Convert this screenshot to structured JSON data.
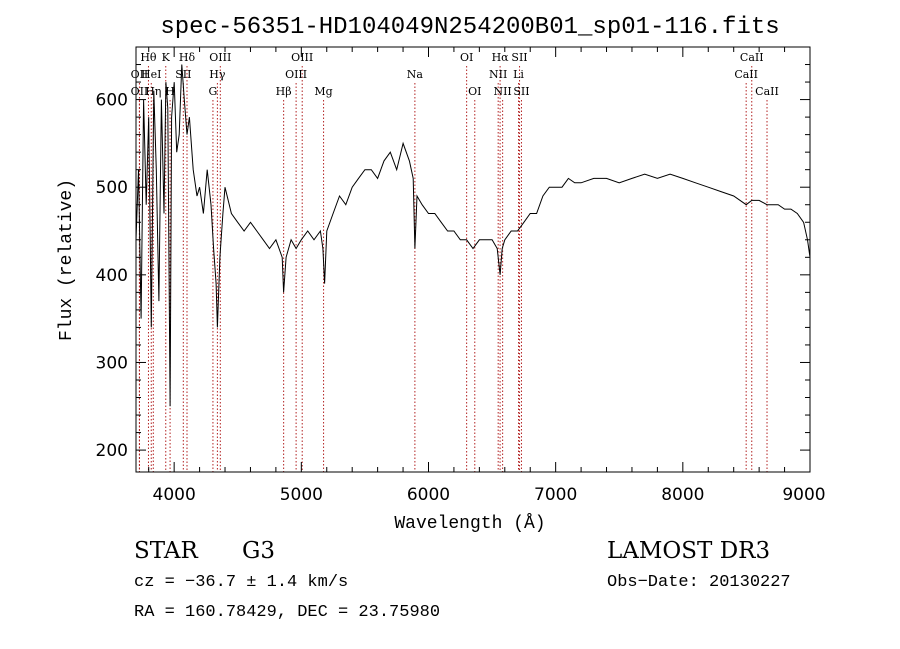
{
  "chart_data": {
    "type": "line",
    "title": "spec-56351-HD104049N254200B01_sp01-116.fits",
    "xlabel": "Wavelength (Å)",
    "ylabel": "Flux (relative)",
    "xlim": [
      3700,
      9000
    ],
    "ylim": [
      175,
      660
    ],
    "x_ticks": [
      4000,
      5000,
      6000,
      7000,
      8000,
      9000
    ],
    "y_ticks": [
      200,
      300,
      400,
      500,
      600
    ],
    "grid": false,
    "series": [
      {
        "name": "spectrum",
        "x": [
          3700,
          3720,
          3740,
          3760,
          3780,
          3800,
          3820,
          3840,
          3860,
          3880,
          3900,
          3920,
          3935,
          3950,
          3968,
          3980,
          4000,
          4020,
          4040,
          4060,
          4080,
          4101,
          4120,
          4150,
          4180,
          4200,
          4230,
          4260,
          4290,
          4310,
          4330,
          4340,
          4360,
          4383,
          4400,
          4450,
          4500,
          4550,
          4600,
          4650,
          4700,
          4750,
          4800,
          4850,
          4861,
          4880,
          4920,
          4959,
          5000,
          5050,
          5100,
          5150,
          5170,
          5183,
          5200,
          5250,
          5300,
          5350,
          5400,
          5450,
          5500,
          5550,
          5600,
          5650,
          5700,
          5750,
          5800,
          5850,
          5880,
          5893,
          5910,
          5950,
          6000,
          6050,
          6100,
          6150,
          6200,
          6250,
          6300,
          6350,
          6400,
          6450,
          6500,
          6540,
          6563,
          6580,
          6600,
          6650,
          6700,
          6750,
          6800,
          6850,
          6900,
          6950,
          7000,
          7050,
          7100,
          7150,
          7200,
          7300,
          7400,
          7500,
          7600,
          7700,
          7800,
          7900,
          8000,
          8100,
          8200,
          8300,
          8400,
          8498,
          8542,
          8600,
          8662,
          8700,
          8750,
          8800,
          8850,
          8900,
          8950,
          8980,
          9000
        ],
        "y": [
          440,
          520,
          350,
          600,
          480,
          580,
          340,
          610,
          520,
          370,
          600,
          470,
          620,
          590,
          250,
          580,
          620,
          540,
          560,
          640,
          600,
          560,
          580,
          520,
          490,
          500,
          470,
          520,
          480,
          430,
          390,
          340,
          420,
          470,
          500,
          470,
          460,
          450,
          460,
          450,
          440,
          430,
          440,
          420,
          380,
          420,
          440,
          430,
          440,
          450,
          440,
          450,
          430,
          390,
          450,
          470,
          490,
          480,
          500,
          510,
          520,
          520,
          510,
          530,
          540,
          520,
          550,
          530,
          510,
          430,
          490,
          480,
          470,
          470,
          460,
          450,
          450,
          440,
          440,
          430,
          440,
          440,
          440,
          430,
          400,
          430,
          440,
          450,
          450,
          460,
          470,
          470,
          490,
          500,
          500,
          500,
          510,
          505,
          505,
          510,
          510,
          505,
          510,
          515,
          510,
          515,
          510,
          505,
          500,
          495,
          490,
          480,
          485,
          485,
          480,
          480,
          480,
          475,
          475,
          470,
          460,
          440,
          420
        ]
      }
    ],
    "line_markers": [
      {
        "label": "Hθ",
        "x": 3798,
        "row": 1
      },
      {
        "label": "OII",
        "x": 3727,
        "row": 2
      },
      {
        "label": "HeI",
        "x": 3820,
        "row": 2
      },
      {
        "label": "OII",
        "x": 3727,
        "row": 3
      },
      {
        "label": "Hη",
        "x": 3836,
        "row": 3
      },
      {
        "label": "K",
        "x": 3934,
        "row": 1
      },
      {
        "label": "SII",
        "x": 4072,
        "row": 2
      },
      {
        "label": "H",
        "x": 3968,
        "row": 3
      },
      {
        "label": "Hδ",
        "x": 4101,
        "row": 1
      },
      {
        "label": "OIII",
        "x": 4363,
        "row": 1
      },
      {
        "label": "Hγ",
        "x": 4340,
        "row": 2
      },
      {
        "label": "G",
        "x": 4305,
        "row": 3
      },
      {
        "label": "OIII",
        "x": 5007,
        "row": 1
      },
      {
        "label": "OIII",
        "x": 4959,
        "row": 2
      },
      {
        "label": "Hβ",
        "x": 4861,
        "row": 3
      },
      {
        "label": "Mg",
        "x": 5175,
        "row": 3
      },
      {
        "label": "Na",
        "x": 5893,
        "row": 2
      },
      {
        "label": "OI",
        "x": 6300,
        "row": 1
      },
      {
        "label": "OI",
        "x": 6364,
        "row": 3
      },
      {
        "label": "Hα",
        "x": 6563,
        "row": 1
      },
      {
        "label": "SII",
        "x": 6716,
        "row": 1
      },
      {
        "label": "NII",
        "x": 6548,
        "row": 2
      },
      {
        "label": "Li",
        "x": 6708,
        "row": 2
      },
      {
        "label": "NII",
        "x": 6583,
        "row": 3
      },
      {
        "label": "SII",
        "x": 6731,
        "row": 3
      },
      {
        "label": "CaII",
        "x": 8542,
        "row": 1
      },
      {
        "label": "CaII",
        "x": 8498,
        "row": 2
      },
      {
        "label": "CaII",
        "x": 8662,
        "row": 3
      }
    ]
  },
  "info": {
    "object_class": "STAR",
    "subclass": "G3",
    "survey": "LAMOST DR3",
    "cz": "cz = −36.7 ± 1.4 km/s",
    "obs_date": "Obs−Date: 20130227",
    "radec": "RA = 160.78429, DEC =  23.75980"
  },
  "colors": {
    "spectrum": "#000000",
    "marker_line": "#b22222",
    "axis": "#000000"
  }
}
